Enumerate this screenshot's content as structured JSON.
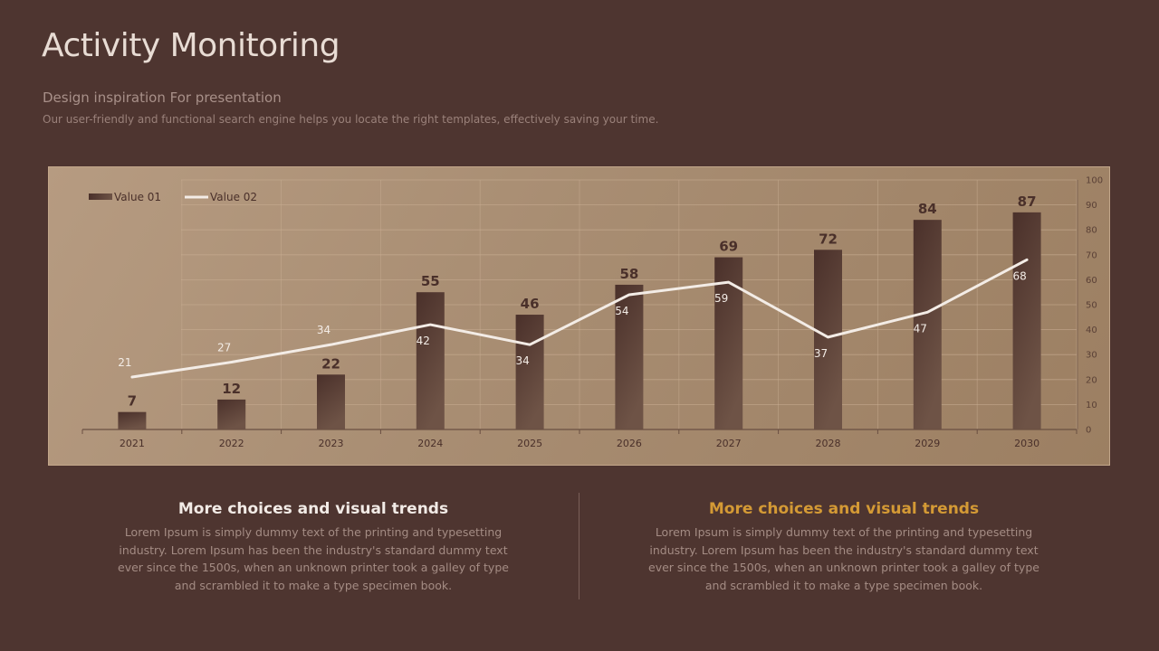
{
  "header": {
    "title": "Activity Monitoring",
    "subtitle": "Design inspiration For presentation",
    "description": "Our user-friendly and functional search engine helps you locate the right templates, effectively saving your time."
  },
  "chart_data": {
    "type": "bar",
    "categories": [
      "2021",
      "2022",
      "2023",
      "2024",
      "2025",
      "2026",
      "2027",
      "2028",
      "2029",
      "2030"
    ],
    "series": [
      {
        "name": "Value 01",
        "type": "bar",
        "values": [
          7,
          12,
          22,
          55,
          46,
          58,
          69,
          72,
          84,
          87
        ]
      },
      {
        "name": "Value 02",
        "type": "line",
        "values": [
          21,
          27,
          34,
          42,
          34,
          54,
          59,
          37,
          47,
          68
        ]
      }
    ],
    "ylim": [
      0,
      100
    ],
    "yticks": [
      0,
      10,
      20,
      30,
      40,
      50,
      60,
      70,
      80,
      90,
      100
    ],
    "legend_position": "top-left",
    "grid": true,
    "colors": {
      "bar_top": "#4a302a",
      "bar_bottom": "#6e5346",
      "line": "#f3ece6"
    }
  },
  "footer": {
    "left": {
      "heading": "More choices and visual trends",
      "body": "Lorem Ipsum is simply dummy text of the printing and typesetting industry. Lorem Ipsum has been the industry's standard dummy text ever since the 1500s, when an unknown printer took a galley of type and scrambled it to make a type specimen book."
    },
    "right": {
      "heading": "More choices and visual trends",
      "body": "Lorem Ipsum is simply dummy text of the printing and typesetting industry. Lorem Ipsum has been the industry's standard dummy text ever since the 1500s, when an unknown printer took a galley of type and scrambled it to make a type specimen book."
    }
  }
}
